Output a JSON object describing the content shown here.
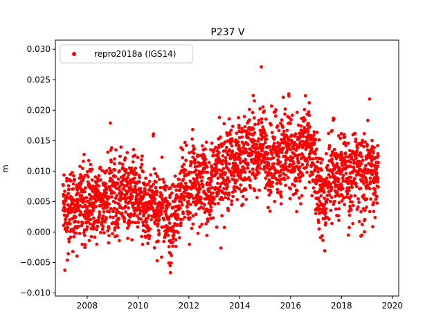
{
  "chart_data": {
    "type": "scatter",
    "title": "P237 V",
    "xlabel": "",
    "ylabel": "m",
    "xlim": [
      2006.75,
      2020.25
    ],
    "ylim": [
      -0.0105,
      0.0315
    ],
    "x_ticks": [
      "2008",
      "2010",
      "2012",
      "2014",
      "2016",
      "2018",
      "2020"
    ],
    "y_ticks": [
      "−0.010",
      "−0.005",
      "0.000",
      "0.005",
      "0.010",
      "0.015",
      "0.020",
      "0.025",
      "0.030"
    ],
    "grid": false,
    "legend_position": "upper-left",
    "marker_color": "#ff0000",
    "series": [
      {
        "name": "repro2018a (IGS14)",
        "x": [
          2007.1,
          2007.2,
          2007.3,
          2007.4,
          2007.5,
          2007.6,
          2007.7,
          2007.8,
          2007.9,
          2008.0,
          2008.1,
          2008.2,
          2008.3,
          2008.4,
          2008.5,
          2008.6,
          2008.7,
          2008.8,
          2008.9,
          2009.0,
          2009.1,
          2009.2,
          2009.3,
          2009.4,
          2009.5,
          2009.6,
          2009.7,
          2009.8,
          2009.9,
          2010.0,
          2010.1,
          2010.2,
          2010.3,
          2010.4,
          2010.5,
          2010.6,
          2010.7,
          2010.8,
          2010.9,
          2011.0,
          2011.1,
          2011.2,
          2011.3,
          2011.4,
          2011.5,
          2011.6,
          2011.7,
          2011.8,
          2011.9,
          2012.0,
          2012.1,
          2012.2,
          2012.3,
          2012.4,
          2012.5,
          2012.6,
          2012.7,
          2012.8,
          2012.9,
          2013.0,
          2013.1,
          2013.2,
          2013.3,
          2013.4,
          2013.5,
          2013.6,
          2013.7,
          2013.8,
          2013.9,
          2014.0,
          2014.1,
          2014.2,
          2014.3,
          2014.4,
          2014.5,
          2014.6,
          2014.7,
          2014.8,
          2014.9,
          2015.0,
          2015.1,
          2015.2,
          2015.3,
          2015.4,
          2015.5,
          2015.6,
          2015.7,
          2015.8,
          2015.9,
          2016.0,
          2016.1,
          2016.2,
          2016.3,
          2016.4,
          2016.5,
          2016.6,
          2016.7,
          2016.8,
          2016.9,
          2017.0,
          2017.1,
          2017.2,
          2017.3,
          2017.4,
          2017.5,
          2017.6,
          2017.7,
          2017.8,
          2017.9,
          2018.0,
          2018.1,
          2018.2,
          2018.3,
          2018.4,
          2018.5,
          2018.6,
          2018.7,
          2018.8,
          2018.9,
          2019.0,
          2019.1,
          2019.2,
          2019.3,
          2019.4
        ],
        "y": [
          0.003,
          0.002,
          0.004,
          0.005,
          0.004,
          0.003,
          0.005,
          0.006,
          0.004,
          0.003,
          0.005,
          0.006,
          0.004,
          0.005,
          0.007,
          0.006,
          0.005,
          0.004,
          0.006,
          0.007,
          0.006,
          0.005,
          0.007,
          0.008,
          0.006,
          0.005,
          0.007,
          0.008,
          0.006,
          0.005,
          0.006,
          0.005,
          0.004,
          0.003,
          0.005,
          0.006,
          0.004,
          0.003,
          0.004,
          0.005,
          0.003,
          0.002,
          0.001,
          0.002,
          0.003,
          0.005,
          0.006,
          0.008,
          0.007,
          0.006,
          0.008,
          0.009,
          0.007,
          0.006,
          0.008,
          0.009,
          0.007,
          0.006,
          0.008,
          0.009,
          0.01,
          0.009,
          0.008,
          0.01,
          0.011,
          0.012,
          0.011,
          0.01,
          0.012,
          0.013,
          0.012,
          0.011,
          0.013,
          0.014,
          0.015,
          0.013,
          0.012,
          0.014,
          0.015,
          0.013,
          0.011,
          0.01,
          0.012,
          0.013,
          0.011,
          0.01,
          0.012,
          0.014,
          0.015,
          0.013,
          0.011,
          0.01,
          0.012,
          0.013,
          0.014,
          0.015,
          0.016,
          0.014,
          0.012,
          0.01,
          0.008,
          0.006,
          0.005,
          0.007,
          0.009,
          0.01,
          0.011,
          0.009,
          0.008,
          0.01,
          0.011,
          0.01,
          0.009,
          0.008,
          0.01,
          0.011,
          0.01,
          0.009,
          0.008,
          0.01,
          0.011,
          0.009,
          0.008,
          0.009
        ],
        "noise_amplitude": 0.0045,
        "spread": [
          2007.05,
          2019.45
        ]
      }
    ]
  }
}
